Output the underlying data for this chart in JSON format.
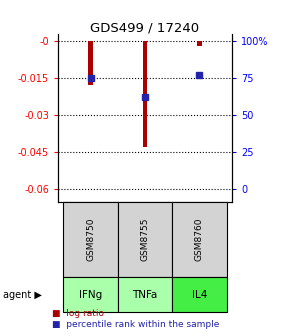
{
  "title": "GDS499 / 17240",
  "samples": [
    "GSM8750",
    "GSM8755",
    "GSM8760"
  ],
  "agents": [
    "IFNg",
    "TNFa",
    "IL4"
  ],
  "log_ratios": [
    -0.018,
    -0.043,
    -0.002
  ],
  "percentile_ranks": [
    75.0,
    62.0,
    77.0
  ],
  "ylim": [
    -0.065,
    0.003
  ],
  "yticks_left": [
    0,
    -0.015,
    -0.03,
    -0.045,
    -0.06
  ],
  "ytick_labels_left": [
    "-0",
    "-0.015",
    "-0.03",
    "-0.045",
    "-0.06"
  ],
  "yticks_right_pct": [
    100,
    75,
    50,
    25,
    0
  ],
  "ytick_labels_right": [
    "100%",
    "75",
    "50",
    "25",
    "0"
  ],
  "bar_color": "#AA0000",
  "square_color": "#2222AA",
  "agent_colors": [
    "#aaffaa",
    "#aaffaa",
    "#44ee44"
  ],
  "sample_box_color": "#d3d3d3",
  "legend_red": "log ratio",
  "legend_blue": "percentile rank within the sample",
  "bar_width": 0.08
}
